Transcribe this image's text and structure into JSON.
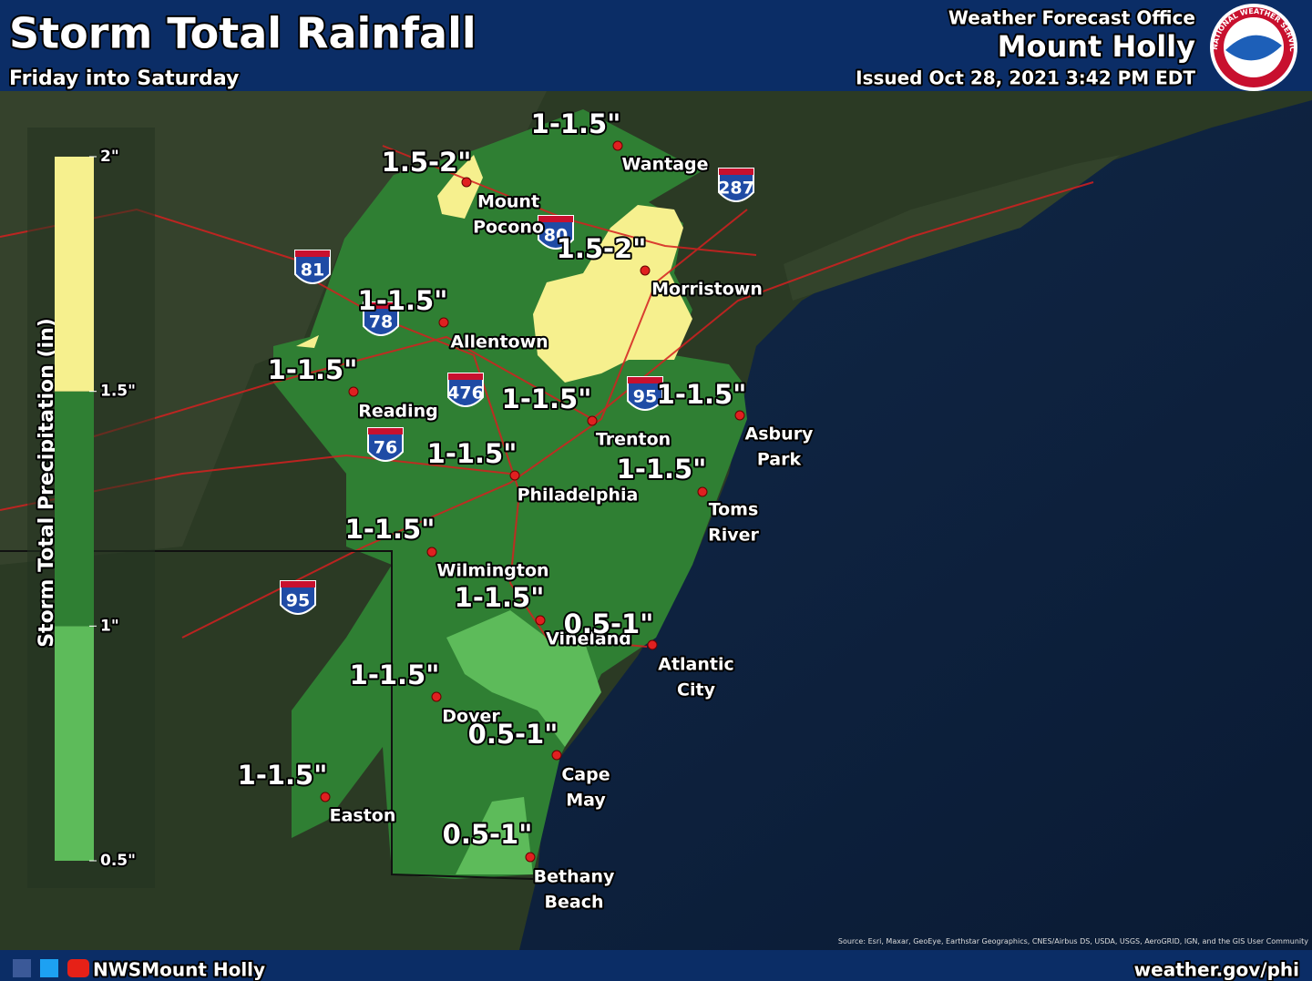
{
  "header": {
    "title": "Storm Total Rainfall",
    "subtitle": "Friday into Saturday",
    "office_line1": "Weather Forecast Office",
    "office_line2": "Mount Holly",
    "issued": "Issued Oct 28, 2021 3:42 PM EDT",
    "logo_text": "NATIONAL WEATHER SERVICE"
  },
  "legend": {
    "title": "Storm Total Precipitation (in)",
    "ticks": [
      {
        "value": 0.5,
        "label": "0.5\""
      },
      {
        "value": 1,
        "label": "1\""
      },
      {
        "value": 1.5,
        "label": "1.5\""
      },
      {
        "value": 2,
        "label": "2\""
      }
    ],
    "colors": [
      "#5dbb5a",
      "#2f7f33",
      "#f6f08e"
    ]
  },
  "rainfall_labels": [
    "1-1.5\"",
    "1.5-2\"",
    "1.5-2\"",
    "1-1.5\"",
    "1-1.5\"",
    "1-1.5\"",
    "1-1.5\"",
    "1-1.5\"",
    "1-1.5\"",
    "1-1.5\"",
    "1-1.5\"",
    "0.5-1\"",
    "1-1.5\"",
    "0.5-1\"",
    "1-1.5\"",
    "0.5-1\""
  ],
  "cities": [
    {
      "lines": [
        "Wantage"
      ]
    },
    {
      "lines": [
        "Mount",
        "Pocono"
      ]
    },
    {
      "lines": [
        "Morristown"
      ]
    },
    {
      "lines": [
        "Allentown"
      ]
    },
    {
      "lines": [
        "Reading"
      ]
    },
    {
      "lines": [
        "Trenton"
      ]
    },
    {
      "lines": [
        "Asbury",
        "Park"
      ]
    },
    {
      "lines": [
        "Philadelphia"
      ]
    },
    {
      "lines": [
        "Toms",
        "River"
      ]
    },
    {
      "lines": [
        "Wilmington"
      ]
    },
    {
      "lines": [
        "Vineland"
      ]
    },
    {
      "lines": [
        "Atlantic",
        "City"
      ]
    },
    {
      "lines": [
        "Dover"
      ]
    },
    {
      "lines": [
        "Cape",
        "May"
      ]
    },
    {
      "lines": [
        "Easton"
      ]
    },
    {
      "lines": [
        "Bethany",
        "Beach"
      ]
    }
  ],
  "shields": [
    "81",
    "78",
    "476",
    "76",
    "95",
    "80",
    "287",
    "95"
  ],
  "footer": {
    "social": "NWSMount Holly",
    "website": "weather.gov/phi",
    "source": "Source: Esri, Maxar, GeoEye, Earthstar Geographics, CNES/Airbus DS, USDA, USGS, AeroGRID, IGN, and the GIS User Community"
  }
}
